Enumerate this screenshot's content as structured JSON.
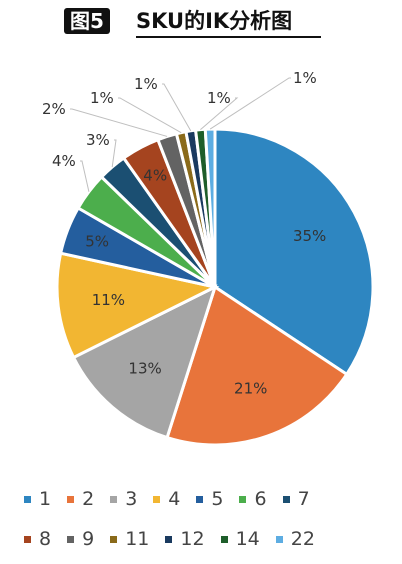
{
  "header": {
    "figure_label": "图5",
    "title": "SKU的IK分析图"
  },
  "chart_data": {
    "type": "pie",
    "title": "SKU的IK分析图",
    "legend_position": "bottom",
    "categories": [
      "1",
      "2",
      "3",
      "4",
      "5",
      "6",
      "7",
      "8",
      "9",
      "11",
      "12",
      "14",
      "22"
    ],
    "values": [
      35,
      21,
      13,
      11,
      5,
      4,
      3,
      4,
      2,
      1,
      1,
      1,
      1
    ],
    "labels": [
      "35%",
      "21%",
      "13%",
      "11%",
      "5%",
      "4%",
      "3%",
      "4%",
      "2%",
      "1%",
      "1%",
      "1%",
      "1%"
    ],
    "colors": [
      "#2E86C1",
      "#E8743B",
      "#A5A5A5",
      "#F2B632",
      "#245E9E",
      "#4CAE4C",
      "#1B4F72",
      "#A5441F",
      "#636363",
      "#8A6A1A",
      "#1A3A5F",
      "#1E5E2A",
      "#5DADE2"
    ]
  }
}
